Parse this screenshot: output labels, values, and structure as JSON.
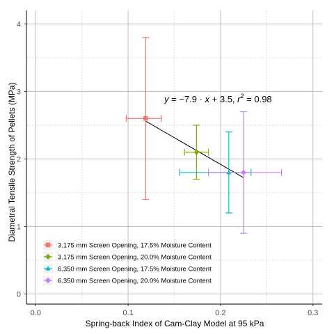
{
  "chart_data": {
    "type": "scatter",
    "xlabel": "Spring-back Index of Cam-Clay Model at 95 kPa",
    "ylabel": "Diametral Tensile Strength of Pellets (MPa)",
    "xlim": [
      -0.01,
      0.31
    ],
    "ylim": [
      -0.15,
      4.2
    ],
    "x_ticks": [
      {
        "value": 0.0,
        "label": "0.0"
      },
      {
        "value": 0.1,
        "label": "0.1"
      },
      {
        "value": 0.2,
        "label": "0.2"
      },
      {
        "value": 0.3,
        "label": "0.3"
      }
    ],
    "y_ticks": [
      {
        "value": 0,
        "label": "0"
      },
      {
        "value": 1,
        "label": "1"
      },
      {
        "value": 2,
        "label": "2"
      },
      {
        "value": 3,
        "label": "3"
      },
      {
        "value": 4,
        "label": "4"
      }
    ],
    "grid": true,
    "legend_position": "bottom-left",
    "series": [
      {
        "name": "3.175 mm Screen Opening, 17.5% Moisture Content",
        "color": "#F8766D",
        "marker": "square",
        "x": 0.119,
        "y": 2.6,
        "x_err": [
          0.098,
          0.136
        ],
        "y_err": [
          1.4,
          3.8
        ]
      },
      {
        "name": "3.175 mm Screen Opening, 20.0% Moisture Content",
        "color": "#7CAE00",
        "marker": "diamond",
        "x": 0.174,
        "y": 2.1,
        "x_err": [
          0.161,
          0.187
        ],
        "y_err": [
          1.7,
          2.5
        ]
      },
      {
        "name": "6.350 mm Screen Opening, 17.5% Moisture Content",
        "color": "#00BFC4",
        "marker": "triangle",
        "x": 0.209,
        "y": 1.8,
        "x_err": [
          0.156,
          0.233
        ],
        "y_err": [
          1.2,
          2.4
        ]
      },
      {
        "name": "6.350 mm Screen Opening, 20.0% Moisture Content",
        "color": "#C77CFF",
        "marker": "diamond",
        "x": 0.225,
        "y": 1.8,
        "x_err": [
          0.187,
          0.266
        ],
        "y_err": [
          0.9,
          2.7
        ]
      }
    ],
    "regression": {
      "x_range": [
        0.119,
        0.225
      ],
      "slope": -7.9,
      "intercept": 3.5,
      "r2": 0.98
    },
    "equation_parts": {
      "y": "y",
      "eq": " = −7.9 · ",
      "x": "x",
      "plus": " + 3.5, ",
      "r": "r",
      "sup": "2",
      "rest": " = 0.98"
    }
  }
}
